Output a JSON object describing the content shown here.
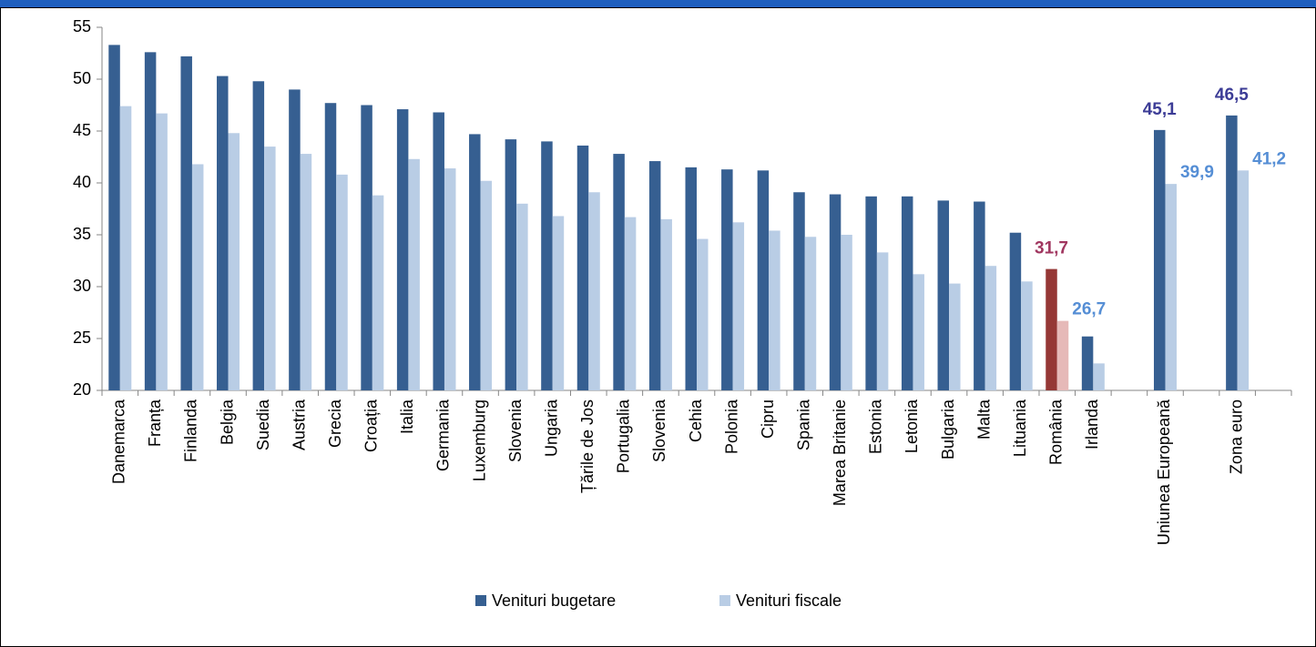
{
  "chart_data": {
    "type": "bar",
    "categories": [
      "Danemarca",
      "Franța",
      "Finlanda",
      "Belgia",
      "Suedia",
      "Austria",
      "Grecia",
      "Croația",
      "Italia",
      "Germania",
      "Luxemburg",
      "Slovenia",
      "Ungaria",
      "Țările de Jos",
      "Portugalia",
      "Slovenia",
      "Cehia",
      "Polonia",
      "Cipru",
      "Spania",
      "Marea Britanie",
      "Estonia",
      "Letonia",
      "Bulgaria",
      "Malta",
      "Lituania",
      "România",
      "Irlanda",
      null,
      "Uniunea Europeană",
      null,
      "Zona euro",
      null
    ],
    "series": [
      {
        "name": "Venituri bugetare",
        "color": "#365f91",
        "highlight_color": "#953735",
        "label_color": "#3c3c96",
        "highlight_label_color": "#a0365f",
        "values": [
          53.3,
          52.6,
          52.2,
          50.3,
          49.8,
          49.0,
          47.7,
          47.5,
          47.1,
          46.8,
          44.7,
          44.2,
          44.0,
          43.6,
          42.8,
          42.1,
          41.5,
          41.3,
          41.2,
          39.1,
          38.9,
          38.7,
          38.7,
          38.3,
          38.2,
          35.2,
          31.7,
          25.2,
          null,
          45.1,
          null,
          46.5,
          null
        ],
        "value_labels": [
          null,
          null,
          null,
          null,
          null,
          null,
          null,
          null,
          null,
          null,
          null,
          null,
          null,
          null,
          null,
          null,
          null,
          null,
          null,
          null,
          null,
          null,
          null,
          null,
          null,
          null,
          "31,7",
          null,
          null,
          "45,1",
          null,
          "46,5",
          null
        ]
      },
      {
        "name": "Venituri fiscale",
        "color": "#b9cde5",
        "highlight_color": "#e6b9b8",
        "label_color": "#558ed5",
        "highlight_label_color": "#558ed5",
        "values": [
          47.4,
          46.7,
          41.8,
          44.8,
          43.5,
          42.8,
          40.8,
          38.8,
          42.3,
          41.4,
          40.2,
          38.0,
          36.8,
          39.1,
          36.7,
          36.5,
          34.6,
          36.2,
          35.4,
          34.8,
          35.0,
          33.3,
          31.2,
          30.3,
          32.0,
          30.5,
          26.7,
          22.6,
          null,
          39.9,
          null,
          41.2,
          null
        ],
        "value_labels": [
          null,
          null,
          null,
          null,
          null,
          null,
          null,
          null,
          null,
          null,
          null,
          null,
          null,
          null,
          null,
          null,
          null,
          null,
          null,
          null,
          null,
          null,
          null,
          null,
          null,
          null,
          "26,7",
          null,
          null,
          "39,9",
          null,
          "41,2",
          null
        ]
      }
    ],
    "highlight_index": 26,
    "ylim": [
      20,
      55
    ],
    "yticks": [
      20,
      25,
      30,
      35,
      40,
      45,
      50,
      55
    ],
    "grid": false,
    "legend": "bottom"
  }
}
